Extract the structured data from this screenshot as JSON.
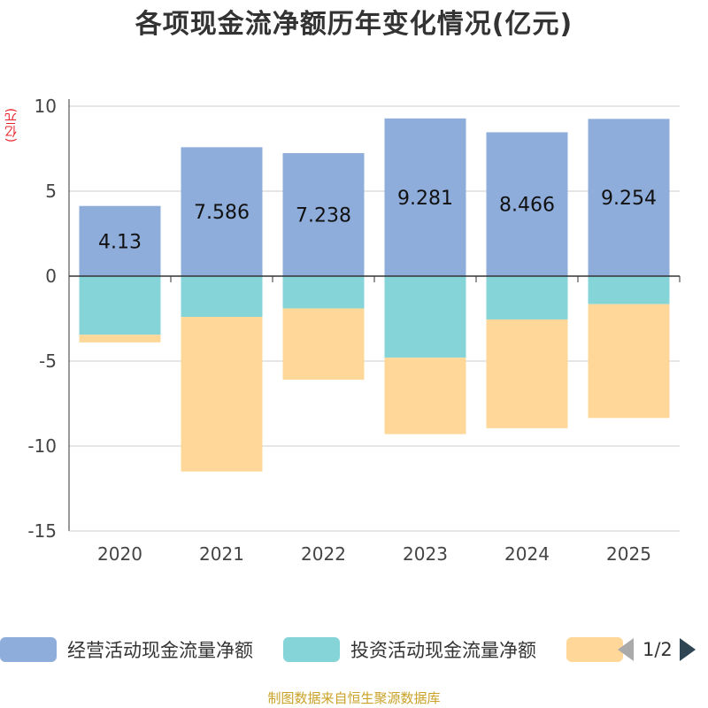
{
  "chart_data": {
    "type": "bar",
    "stacked": true,
    "title": "各项现金流净额历年变化情况(亿元)",
    "ylabel": "(亿元)",
    "xlabel": "",
    "categories": [
      "2020",
      "2021",
      "2022",
      "2023",
      "2024",
      "2025"
    ],
    "ylim": [
      -15,
      10
    ],
    "yticks": [
      10,
      5,
      0,
      -5,
      -10,
      -15
    ],
    "series": [
      {
        "name": "经营活动现金流量净额",
        "color": "#8eaddb",
        "values": [
          4.13,
          7.586,
          7.238,
          9.281,
          8.466,
          9.254
        ],
        "show_labels": true
      },
      {
        "name": "投资活动现金流量净额",
        "color": "#85d5d8",
        "values": [
          -3.45,
          -2.4,
          -1.9,
          -4.8,
          -2.55,
          -1.65
        ],
        "show_labels": false
      },
      {
        "name": "",
        "color": "#ffd899",
        "values": [
          -0.45,
          -9.1,
          -4.2,
          -4.5,
          -6.4,
          -6.7
        ],
        "show_labels": false
      }
    ],
    "legend_position": "bottom",
    "grid": true
  },
  "legend": {
    "page_text": "1/2"
  },
  "source": "制图数据来自恒生聚源数据库"
}
